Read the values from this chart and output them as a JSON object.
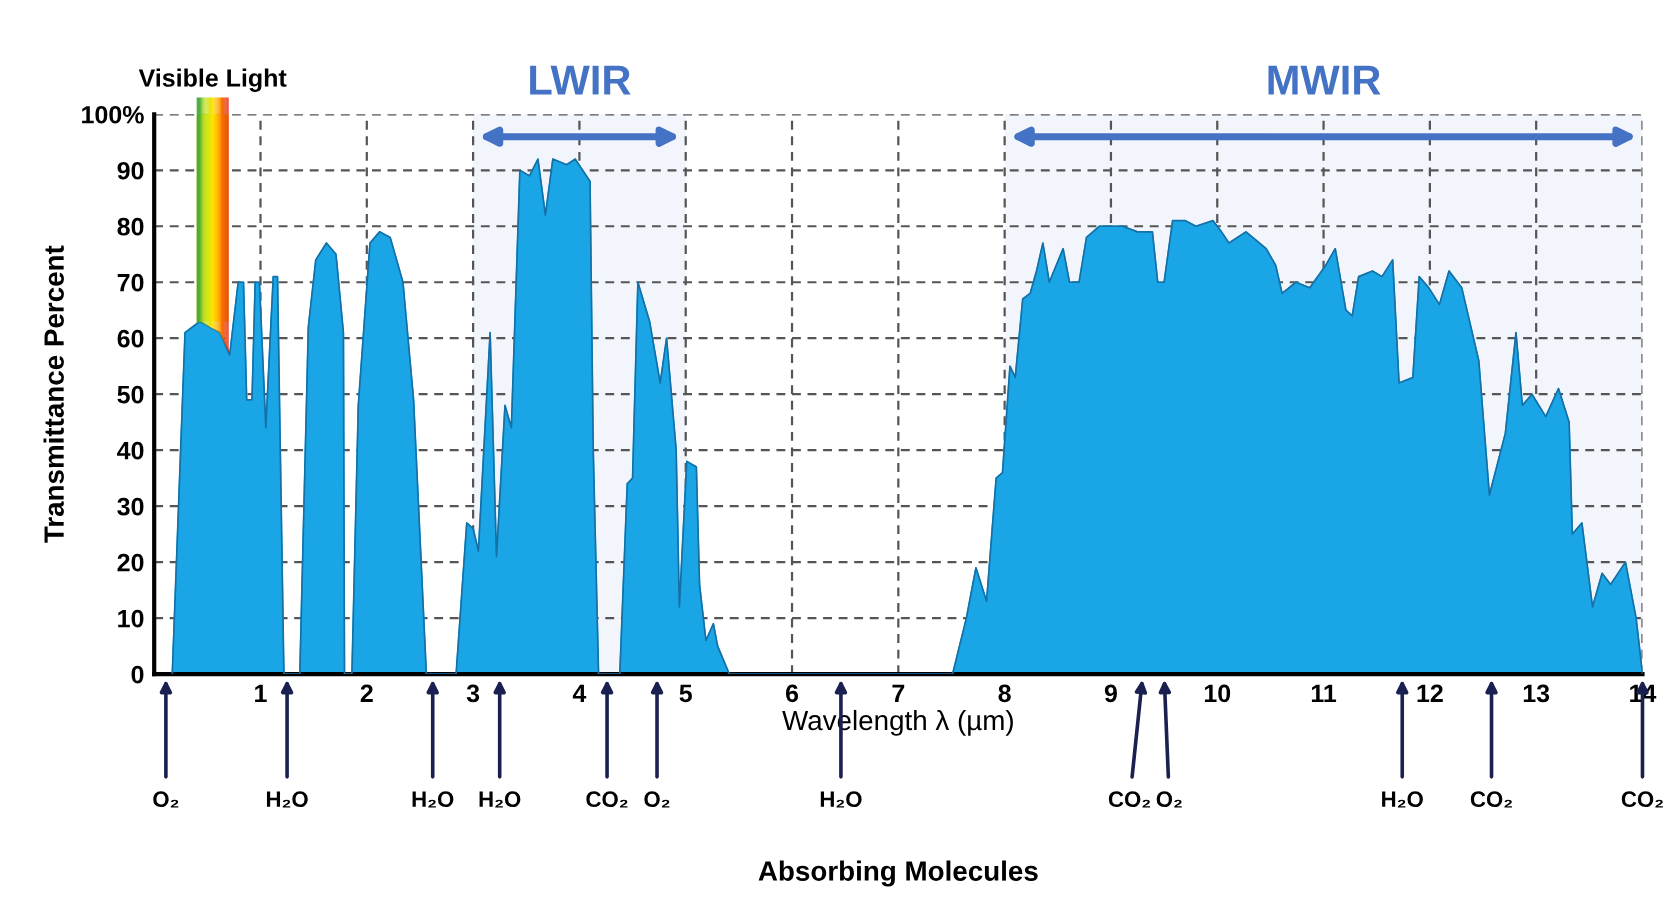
{
  "chart_data": {
    "type": "area",
    "xlabel": "Wavelength λ (µm)",
    "ylabel": "Transmittance Percent",
    "series": [
      {
        "color": "#1aa6e6",
        "x": [
          0.17,
          0.29,
          0.43,
          0.62,
          0.71,
          0.79,
          0.84,
          0.87,
          0.92,
          0.95,
          0.99,
          1.05,
          1.12,
          1.16,
          1.22,
          1.37,
          1.45,
          1.52,
          1.62,
          1.71,
          1.78,
          1.79,
          1.86,
          1.92,
          2.03,
          2.12,
          2.22,
          2.34,
          2.44,
          2.56,
          2.84,
          2.94,
          3.0,
          3.05,
          3.16,
          3.22,
          3.3,
          3.36,
          3.44,
          3.53,
          3.61,
          3.68,
          3.75,
          3.88,
          3.96,
          4.1,
          4.13,
          4.18,
          4.38,
          4.45,
          4.5,
          4.55,
          4.66,
          4.76,
          4.82,
          4.91,
          4.94,
          5.01,
          5.1,
          5.13,
          5.19,
          5.26,
          5.3,
          5.41,
          7.51,
          7.64,
          7.73,
          7.83,
          7.92,
          7.98,
          8.05,
          8.1,
          8.17,
          8.24,
          8.3,
          8.36,
          8.42,
          8.55,
          8.61,
          8.7,
          8.77,
          8.89,
          9.11,
          9.25,
          9.39,
          9.44,
          9.5,
          9.58,
          9.7,
          9.8,
          9.96,
          10.04,
          10.11,
          10.27,
          10.46,
          10.55,
          10.61,
          10.74,
          10.87,
          11.02,
          11.11,
          11.21,
          11.27,
          11.33,
          11.46,
          11.55,
          11.65,
          11.71,
          11.84,
          11.9,
          11.99,
          12.09,
          12.18,
          12.3,
          12.46,
          12.56,
          12.71,
          12.81,
          12.87,
          12.96,
          13.09,
          13.21,
          13.31,
          13.34,
          13.43,
          13.53,
          13.62,
          13.7,
          13.84,
          13.94,
          14.0
        ],
        "values": [
          0,
          61,
          63,
          61,
          57,
          70,
          70,
          49,
          49,
          70,
          70,
          44,
          71,
          71,
          0,
          0,
          62,
          74,
          77,
          75,
          61,
          0,
          0,
          48,
          77,
          79,
          78,
          70,
          49,
          0,
          0,
          27,
          26,
          22,
          61,
          21,
          48,
          44,
          90,
          89,
          92,
          82,
          92,
          91,
          92,
          88,
          40,
          0,
          0,
          34,
          35,
          70,
          63,
          52,
          60,
          40,
          12,
          38,
          37,
          16,
          6,
          9,
          5,
          0,
          0,
          10,
          19,
          13,
          35,
          36,
          55,
          53,
          67,
          68,
          72,
          77,
          70,
          76,
          70,
          70,
          78,
          80,
          80,
          79,
          79,
          70,
          70,
          81,
          81,
          80,
          81,
          79,
          77,
          79,
          76,
          73,
          68,
          70,
          69,
          73,
          76,
          65,
          64,
          71,
          72,
          71,
          74,
          52,
          53,
          71,
          69,
          66,
          72,
          69,
          56,
          32,
          43,
          61,
          48,
          50,
          46,
          51,
          45,
          25,
          27,
          12,
          18,
          16,
          20,
          10,
          0
        ]
      }
    ],
    "xlim": [
      0,
      14
    ],
    "xticks": [
      1,
      2,
      3,
      4,
      5,
      6,
      7,
      8,
      9,
      10,
      11,
      12,
      13,
      14
    ],
    "ylim": [
      0,
      100
    ],
    "yticks": [
      0,
      10,
      20,
      30,
      40,
      50,
      60,
      70,
      80,
      90,
      {
        "value": 100,
        "label": "100%"
      }
    ],
    "grid": true,
    "bands": [
      {
        "axis": "x",
        "from": 0.4,
        "to": 0.7,
        "label": "Visible Light"
      },
      {
        "axis": "x",
        "from": 3,
        "to": 5,
        "label": "LWIR",
        "color": "#4472c4"
      },
      {
        "axis": "x",
        "from": 8,
        "to": 14,
        "label": "MWIR",
        "color": "#4472c4"
      }
    ],
    "annotations": [
      {
        "text": "O₂",
        "x": 0.11,
        "y": 0
      },
      {
        "text": "H₂O",
        "x": 1.25,
        "y": 0
      },
      {
        "text": "H₂O",
        "x": 2.62,
        "y": 0
      },
      {
        "text": "H₂O",
        "x": 3.25,
        "y": 0
      },
      {
        "text": "CO₂",
        "x": 4.26,
        "y": 0
      },
      {
        "text": "O₂",
        "x": 4.73,
        "y": 0
      },
      {
        "text": "H₂O",
        "x": 6.46,
        "y": 0
      },
      {
        "text": "CO₂",
        "x": 9.3,
        "y": 0
      },
      {
        "text": "O₂",
        "x": 9.5,
        "y": 0
      },
      {
        "text": "H₂O",
        "x": 11.74,
        "y": 0
      },
      {
        "text": "CO₂",
        "x": 12.58,
        "y": 0
      },
      {
        "text": "CO₂",
        "x": 14.0,
        "y": 0
      },
      "Absorbing Molecules"
    ]
  }
}
